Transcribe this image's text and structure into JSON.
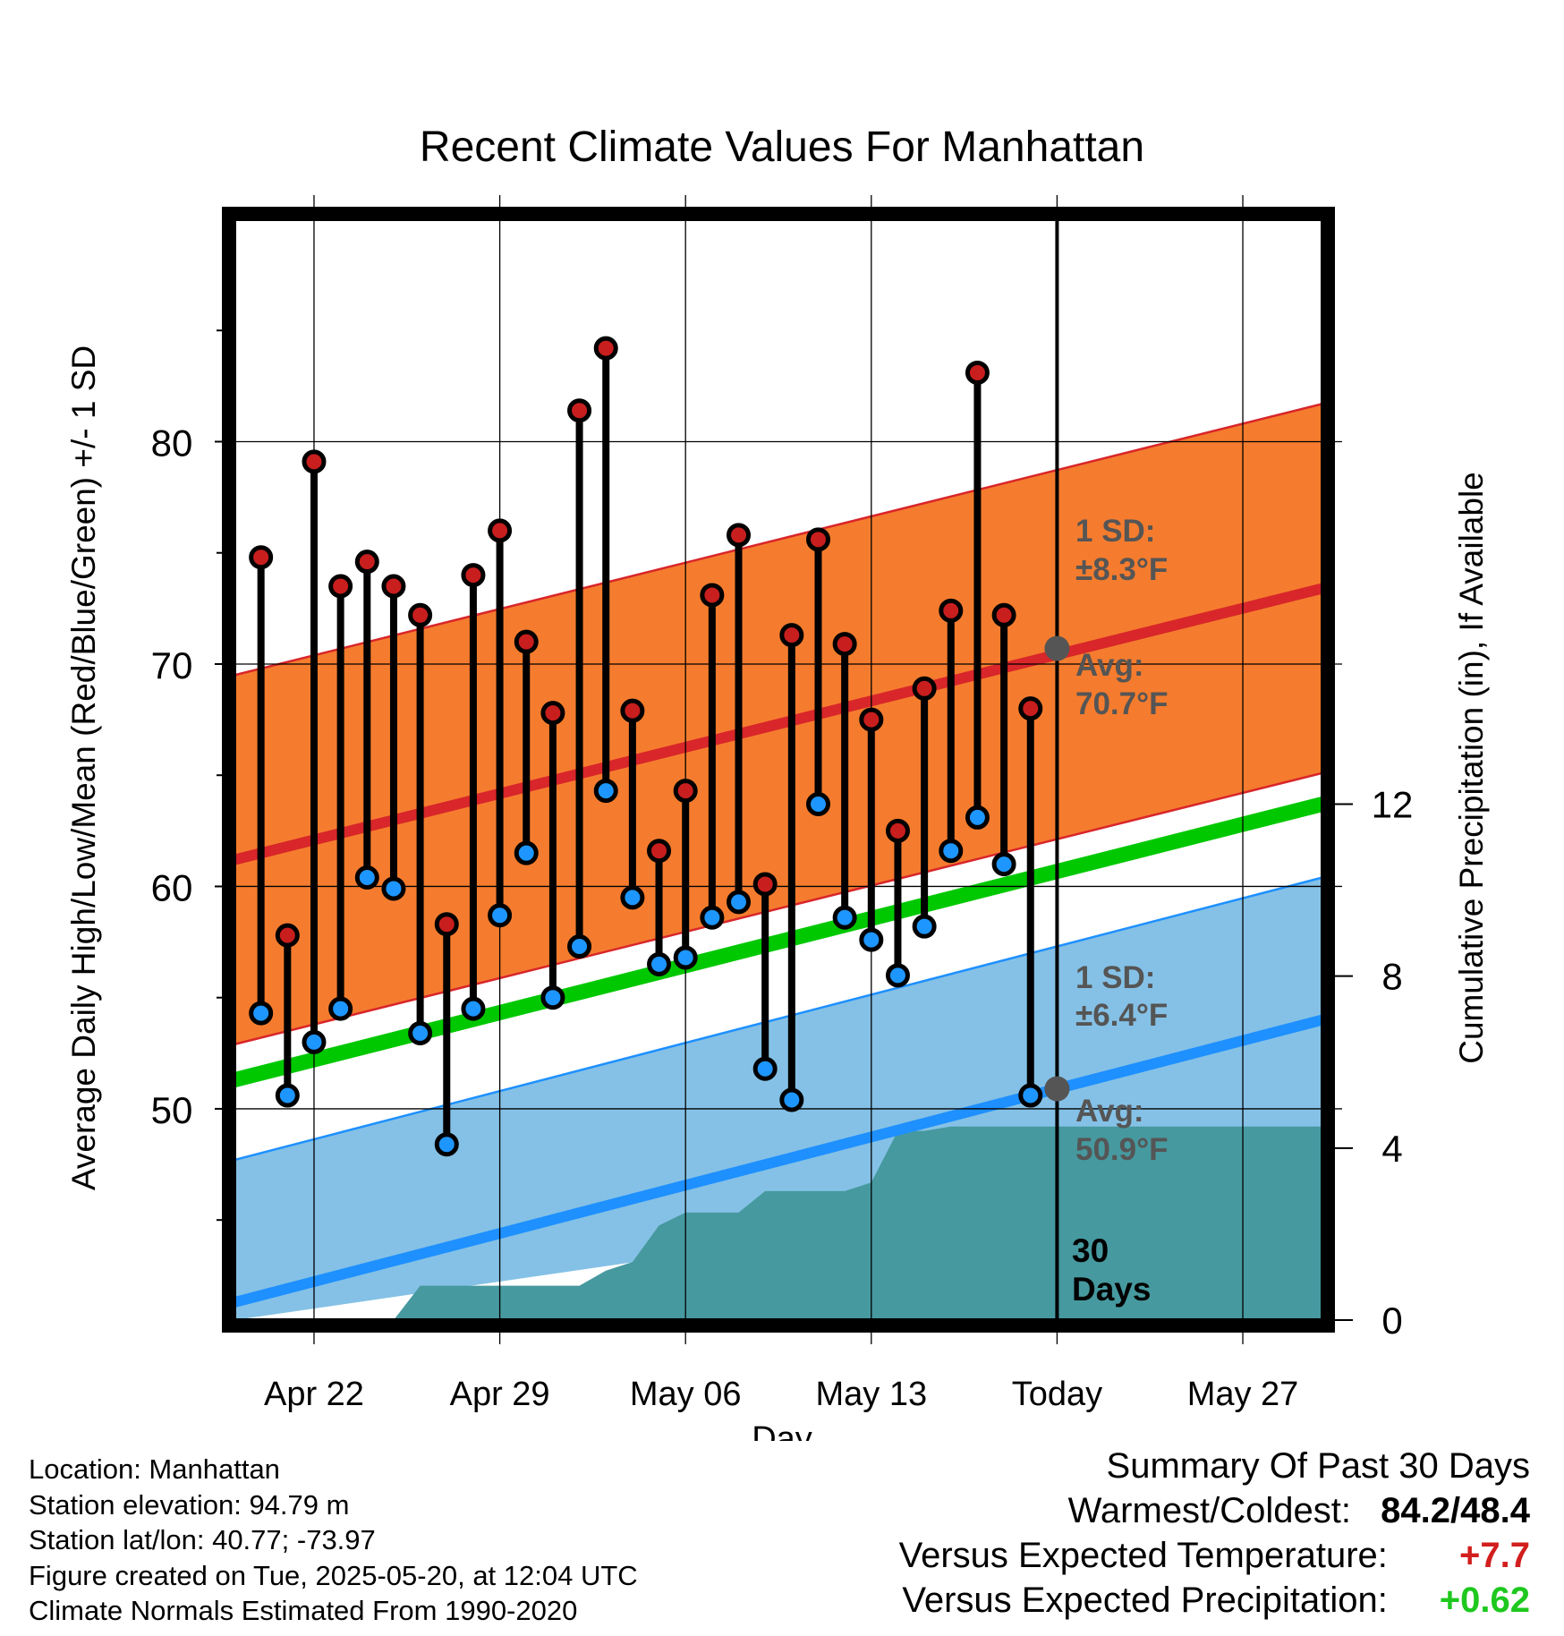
{
  "chart_data": {
    "type": "line",
    "title": "Recent Climate Values For Manhattan",
    "xlabel": "Day",
    "ylabel": "Average Daily High/Low/Mean (Red/Blue/Green) +/- 1 SD",
    "y2label": "Cumulative Precipitation (in), If Available",
    "x_tick_labels": [
      "Apr 22",
      "Apr 29",
      "May 06",
      "May 13",
      "Today",
      "May 27"
    ],
    "x_range_days": [
      "2025-04-19",
      "2025-05-30"
    ],
    "today": "2025-05-20",
    "ylim": [
      40.5,
      90
    ],
    "y_ticks": [
      50,
      60,
      70,
      80
    ],
    "y2lim": [
      0,
      25.6
    ],
    "y2_ticks": [
      0,
      4,
      8,
      12
    ],
    "grid": true,
    "colors": {
      "high_band": "#f57c2e",
      "high_band_edge": "#d8262a",
      "avg_high": "#d8262a",
      "low_band": "#85c1e6",
      "low_band_edge": "#1e90ff",
      "avg_low": "#1e90ff",
      "mean": "#00c800",
      "precip": "#46999f",
      "high_dot": "#c81e1e",
      "low_dot": "#1e96ff",
      "marker": "#555555"
    },
    "normals": {
      "avg_high_range": [
        61.2,
        73.4
      ],
      "avg_low_range": [
        41.3,
        54.0
      ],
      "mean_range": [
        51.3,
        63.7
      ],
      "high_sd": 8.3,
      "low_sd": 6.4
    },
    "annotations": {
      "high_sd_label": "1 SD:",
      "high_sd_value": "±8.3°F",
      "high_avg_label": "Avg:",
      "high_avg_value": "70.7°F",
      "low_sd_label": "1 SD:",
      "low_sd_value": "±6.4°F",
      "low_avg_label": "Avg:",
      "low_avg_value": "50.9°F",
      "days_number": "30",
      "days_word": "Days",
      "high_avg_today": 70.7,
      "low_avg_today": 50.9
    },
    "series": [
      {
        "name": "High",
        "dates": [
          "2025-04-20",
          "2025-04-21",
          "2025-04-22",
          "2025-04-23",
          "2025-04-24",
          "2025-04-25",
          "2025-04-26",
          "2025-04-27",
          "2025-04-28",
          "2025-04-29",
          "2025-04-30",
          "2025-05-01",
          "2025-05-02",
          "2025-05-03",
          "2025-05-04",
          "2025-05-05",
          "2025-05-06",
          "2025-05-07",
          "2025-05-08",
          "2025-05-09",
          "2025-05-10",
          "2025-05-11",
          "2025-05-12",
          "2025-05-13",
          "2025-05-14",
          "2025-05-15",
          "2025-05-16",
          "2025-05-17",
          "2025-05-18",
          "2025-05-19"
        ],
        "values": [
          74.8,
          57.8,
          79.1,
          73.5,
          74.6,
          73.5,
          72.2,
          58.3,
          74.0,
          76.0,
          71.0,
          67.8,
          81.4,
          84.2,
          67.9,
          61.6,
          64.3,
          73.1,
          75.8,
          60.1,
          71.3,
          75.6,
          70.9,
          67.5,
          62.5,
          68.9,
          72.4,
          83.1,
          72.2,
          68.0
        ]
      },
      {
        "name": "Low",
        "dates": [
          "2025-04-20",
          "2025-04-21",
          "2025-04-22",
          "2025-04-23",
          "2025-04-24",
          "2025-04-25",
          "2025-04-26",
          "2025-04-27",
          "2025-04-28",
          "2025-04-29",
          "2025-04-30",
          "2025-05-01",
          "2025-05-02",
          "2025-05-03",
          "2025-05-04",
          "2025-05-05",
          "2025-05-06",
          "2025-05-07",
          "2025-05-08",
          "2025-05-09",
          "2025-05-10",
          "2025-05-11",
          "2025-05-12",
          "2025-05-13",
          "2025-05-14",
          "2025-05-15",
          "2025-05-16",
          "2025-05-17",
          "2025-05-18",
          "2025-05-19"
        ],
        "values": [
          54.3,
          50.6,
          53.0,
          54.5,
          60.4,
          59.9,
          53.4,
          48.4,
          54.5,
          58.7,
          61.5,
          55.0,
          57.3,
          64.3,
          59.5,
          56.5,
          56.8,
          58.6,
          59.3,
          51.8,
          50.4,
          63.7,
          58.6,
          57.6,
          56.0,
          58.2,
          61.6,
          63.1,
          61.0,
          50.6
        ]
      },
      {
        "name": "Cumulative Precipitation",
        "points": [
          [
            "2025-04-19",
            0
          ],
          [
            "2025-04-25",
            0
          ],
          [
            "2025-04-26",
            0.8
          ],
          [
            "2025-05-02",
            0.8
          ],
          [
            "2025-05-03",
            1.15
          ],
          [
            "2025-05-04",
            1.35
          ],
          [
            "2025-05-05",
            2.2
          ],
          [
            "2025-05-06",
            2.5
          ],
          [
            "2025-05-08",
            2.5
          ],
          [
            "2025-05-09",
            3.0
          ],
          [
            "2025-05-12",
            3.0
          ],
          [
            "2025-05-13",
            3.2
          ],
          [
            "2025-05-14",
            4.4
          ],
          [
            "2025-05-15",
            4.4
          ],
          [
            "2025-05-16",
            4.5
          ],
          [
            "2025-05-30",
            4.5
          ]
        ]
      }
    ]
  },
  "footer": {
    "location": "Location: Manhattan",
    "elevation": "Station elevation: 94.79 m",
    "latlon": "Station lat/lon: 40.77; -73.97",
    "created": "Figure created on Tue, 2025-05-20, at 12:04 UTC",
    "normals": "Climate Normals Estimated From 1990-2020"
  },
  "summary": {
    "title": "Summary Of Past 30 Days",
    "warmest_label": "Warmest/Coldest:",
    "warmest_value": "84.2",
    "coldest_value": "48.4",
    "temp_label": "Versus Expected Temperature:",
    "temp_value": "+7.7",
    "temp_color": "#d21e1e",
    "precip_label": "Versus Expected Precipitation:",
    "precip_value": "+0.62",
    "precip_color": "#1ec81e"
  }
}
